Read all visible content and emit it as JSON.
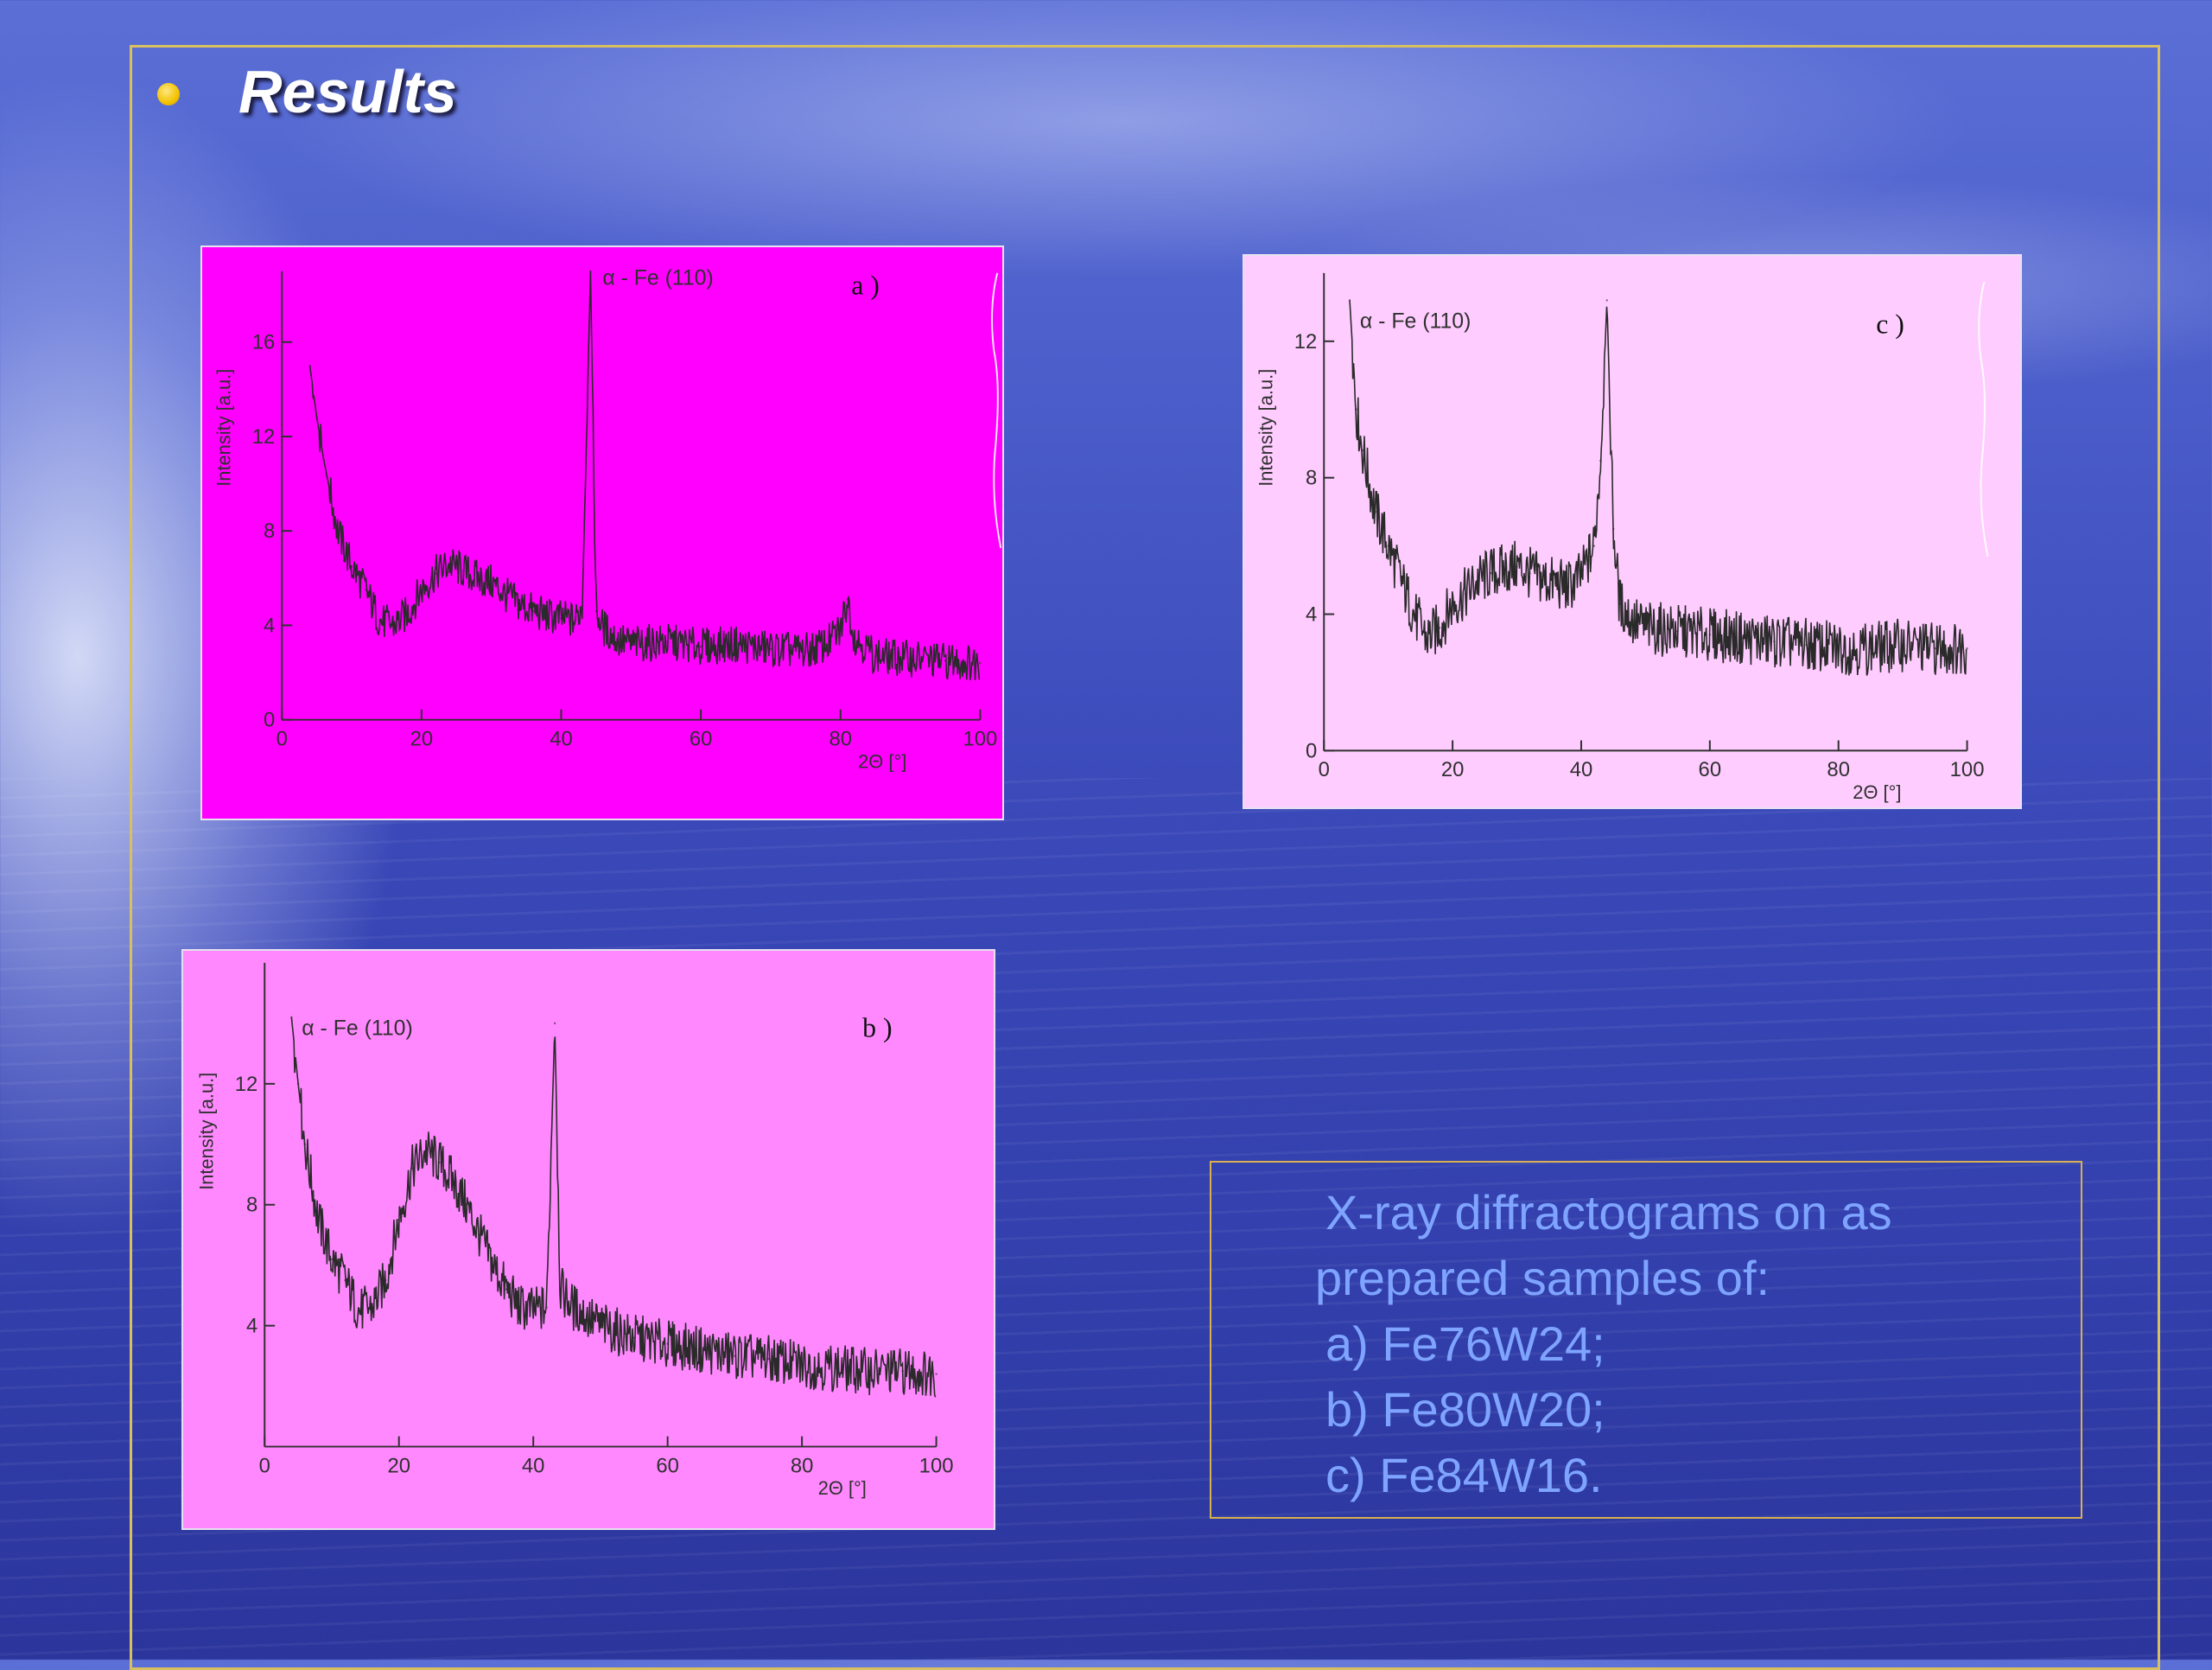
{
  "slide": {
    "heading": "Results",
    "caption": {
      "line1": "X-ray diffractograms on as",
      "line2": "prepared samples of:",
      "items": [
        "a) Fe76W24;",
        "b) Fe80W20;",
        "c) Fe84W16."
      ]
    }
  },
  "colors": {
    "panel_a_bg": "#ff00ff",
    "panel_b_bg": "#ff88ff",
    "panel_c_bg": "#ffccff",
    "frame": "#d8c060",
    "caption_text": "#7ea4ff",
    "bullet": "#f2c200"
  },
  "chart_data": [
    {
      "id": "a",
      "type": "line",
      "panel_label": "a )",
      "annotation": "α - Fe (110)",
      "xlabel": "2Θ [°]",
      "ylabel": "Intensity [a.u.]",
      "xlim": [
        0,
        100
      ],
      "ylim": [
        0,
        19
      ],
      "xticks": [
        0,
        20,
        40,
        60,
        80,
        100
      ],
      "yticks": [
        0,
        4,
        8,
        12,
        16
      ],
      "grid": false,
      "x": [
        4,
        5,
        6,
        8,
        10,
        12,
        14,
        16,
        18,
        20,
        22,
        24,
        26,
        28,
        30,
        32,
        34,
        36,
        38,
        40,
        42,
        43,
        44.2,
        45,
        46,
        48,
        50,
        55,
        60,
        65,
        70,
        75,
        78,
        80,
        81,
        82,
        85,
        90,
        95,
        100
      ],
      "y": [
        15,
        12.8,
        11,
        8,
        6.5,
        5.5,
        4.2,
        4,
        4.5,
        5.5,
        6.2,
        6.6,
        6.3,
        6,
        5.8,
        5.3,
        4.9,
        4.6,
        4.4,
        4.3,
        4.2,
        4.8,
        19,
        4.6,
        3.9,
        3.4,
        3.2,
        3.3,
        3.1,
        3.2,
        3,
        2.9,
        3.2,
        3.8,
        5.1,
        3.5,
        2.7,
        2.6,
        2.5,
        2.4
      ]
    },
    {
      "id": "b",
      "type": "line",
      "panel_label": "b )",
      "annotation": "α - Fe (110)",
      "xlabel": "2Θ [°]",
      "ylabel": "Intensity [a.u.]",
      "xlim": [
        0,
        100
      ],
      "ylim": [
        0,
        16
      ],
      "xticks": [
        0,
        20,
        40,
        60,
        80,
        100
      ],
      "yticks": [
        4,
        8,
        12
      ],
      "grid": false,
      "x": [
        4,
        5,
        6,
        8,
        10,
        12,
        14,
        16,
        18,
        20,
        22,
        24,
        26,
        28,
        30,
        32,
        34,
        36,
        38,
        40,
        42,
        43.2,
        44,
        45,
        46,
        48,
        50,
        55,
        60,
        65,
        70,
        75,
        80,
        85,
        90,
        95,
        100
      ],
      "y": [
        14.2,
        12,
        10,
        7.5,
        6.2,
        5.5,
        4.5,
        4.6,
        5.5,
        7.5,
        9.2,
        9.8,
        9.4,
        8.8,
        8,
        7,
        6,
        5.2,
        4.6,
        4.5,
        4.6,
        14,
        5.2,
        4.9,
        4.6,
        4.3,
        4,
        3.6,
        3.4,
        3.2,
        3,
        2.9,
        2.7,
        2.6,
        2.5,
        2.5,
        2.4
      ]
    },
    {
      "id": "c",
      "type": "line",
      "panel_label": "c )",
      "annotation": "α - Fe (110)",
      "xlabel": "2Θ [°]",
      "ylabel": "Intensity [a.u.]",
      "xlim": [
        0,
        100
      ],
      "ylim": [
        0,
        14
      ],
      "xticks": [
        0,
        20,
        40,
        60,
        80,
        100
      ],
      "yticks": [
        0,
        4,
        8,
        12
      ],
      "grid": false,
      "x": [
        4,
        5,
        6,
        8,
        10,
        12,
        14,
        16,
        18,
        20,
        22,
        24,
        26,
        28,
        30,
        32,
        34,
        36,
        38,
        40,
        42,
        43,
        44,
        45,
        46,
        48,
        50,
        55,
        60,
        65,
        70,
        75,
        80,
        85,
        90,
        95,
        100
      ],
      "y": [
        13.2,
        10,
        8.8,
        7,
        6,
        5,
        4,
        3.3,
        3.6,
        4.3,
        4.6,
        5,
        5.2,
        5.3,
        5.4,
        5.2,
        5,
        4.9,
        4.8,
        5.1,
        6,
        8.5,
        13.2,
        6.5,
        4.3,
        3.8,
        3.6,
        3.5,
        3.4,
        3.3,
        3.2,
        3.1,
        3,
        3,
        3.1,
        3,
        3
      ]
    }
  ]
}
